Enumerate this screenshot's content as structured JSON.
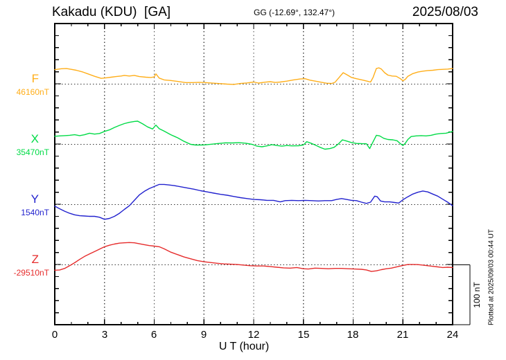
{
  "header": {
    "station": "Kakadu (KDU)  [GA]",
    "coords": "GG (-12.69°, 132.47°)",
    "date": "2025/08/03"
  },
  "xaxis": {
    "label": "U T (hour)",
    "tick_labels": [
      "0",
      "3",
      "6",
      "9",
      "12",
      "15",
      "18",
      "21",
      "24"
    ]
  },
  "scalebar": {
    "label": "100 nT",
    "nT": 100
  },
  "footer_note": "Plotted at 2025/09/03 00:44 UT",
  "chart_data": {
    "type": "line",
    "title": "Kakadu (KDU)  [GA]",
    "subtitle": "GG (-12.69°, 132.47°)",
    "date": "2025/08/03",
    "xlabel": "U T (hour)",
    "x_range": [
      0,
      24
    ],
    "x_tick_interval_hours": 1,
    "x_gridlines_hours": [
      3,
      6,
      9,
      12,
      15,
      18,
      21
    ],
    "y_tick_interval_nT": 20,
    "y_baseline_separation_nT": 100,
    "grid": "dotted",
    "series": [
      {
        "name": "F",
        "baseline_label": "46160nT",
        "baseline_nT": 46160,
        "color": "#FFAE19",
        "points": [
          [
            0,
            24
          ],
          [
            0.4,
            25.5
          ],
          [
            0.7,
            26
          ],
          [
            1.0,
            24.5
          ],
          [
            1.3,
            23
          ],
          [
            1.7,
            20
          ],
          [
            2.0,
            17
          ],
          [
            2.4,
            13
          ],
          [
            2.8,
            9.5
          ],
          [
            3.1,
            10.5
          ],
          [
            3.4,
            11.5
          ],
          [
            3.7,
            12.5
          ],
          [
            4.0,
            13.5
          ],
          [
            4.2,
            14.5
          ],
          [
            4.5,
            13.5
          ],
          [
            4.8,
            14.5
          ],
          [
            5.1,
            12.5
          ],
          [
            5.5,
            11.5
          ],
          [
            5.8,
            11
          ],
          [
            6.0,
            12
          ],
          [
            6.1,
            17
          ],
          [
            6.3,
            10
          ],
          [
            6.6,
            7
          ],
          [
            7.0,
            6
          ],
          [
            7.4,
            4.5
          ],
          [
            7.9,
            2.5
          ],
          [
            8.3,
            2.5
          ],
          [
            8.7,
            3
          ],
          [
            9.1,
            2.5
          ],
          [
            9.6,
            1.5
          ],
          [
            10.0,
            0.8
          ],
          [
            10.4,
            0
          ],
          [
            10.8,
            -0.5
          ],
          [
            11.2,
            1
          ],
          [
            11.6,
            2
          ],
          [
            12.0,
            3.5
          ],
          [
            12.3,
            1.7
          ],
          [
            12.6,
            3
          ],
          [
            13.0,
            4
          ],
          [
            13.3,
            2.8
          ],
          [
            13.6,
            3.5
          ],
          [
            14.0,
            5
          ],
          [
            14.4,
            7
          ],
          [
            14.8,
            8.5
          ],
          [
            15.1,
            9
          ],
          [
            15.4,
            6.5
          ],
          [
            15.8,
            4.5
          ],
          [
            16.1,
            3
          ],
          [
            16.4,
            1.5
          ],
          [
            16.7,
            1
          ],
          [
            16.9,
            3
          ],
          [
            17.15,
            11
          ],
          [
            17.4,
            19
          ],
          [
            17.6,
            16
          ],
          [
            17.9,
            11
          ],
          [
            18.2,
            9
          ],
          [
            18.6,
            6.5
          ],
          [
            18.9,
            4.5
          ],
          [
            19.05,
            3.5
          ],
          [
            19.2,
            11
          ],
          [
            19.4,
            26
          ],
          [
            19.55,
            27
          ],
          [
            19.7,
            25
          ],
          [
            19.9,
            19
          ],
          [
            20.1,
            15
          ],
          [
            20.35,
            13.5
          ],
          [
            20.6,
            13
          ],
          [
            20.85,
            9
          ],
          [
            21.0,
            5.5
          ],
          [
            21.15,
            8
          ],
          [
            21.3,
            13
          ],
          [
            21.6,
            17.5
          ],
          [
            21.9,
            20
          ],
          [
            22.2,
            21.5
          ],
          [
            22.5,
            22.5
          ],
          [
            22.8,
            23
          ],
          [
            23.1,
            24
          ],
          [
            23.4,
            24.5
          ],
          [
            23.7,
            25
          ],
          [
            24,
            26
          ]
        ]
      },
      {
        "name": "X",
        "baseline_label": "35470nT",
        "baseline_nT": 35470,
        "color": "#00DB46",
        "points": [
          [
            0,
            13.5
          ],
          [
            0.3,
            14
          ],
          [
            0.6,
            14.5
          ],
          [
            0.9,
            15
          ],
          [
            1.2,
            16
          ],
          [
            1.5,
            14.5
          ],
          [
            1.8,
            16
          ],
          [
            2.1,
            18.5
          ],
          [
            2.4,
            17
          ],
          [
            2.7,
            18
          ],
          [
            3.0,
            21.5
          ],
          [
            3.3,
            24
          ],
          [
            3.6,
            28
          ],
          [
            3.9,
            31.5
          ],
          [
            4.2,
            34.5
          ],
          [
            4.5,
            36.5
          ],
          [
            4.8,
            38
          ],
          [
            5.0,
            38.5
          ],
          [
            5.3,
            34
          ],
          [
            5.6,
            29
          ],
          [
            5.9,
            25.5
          ],
          [
            6.1,
            32
          ],
          [
            6.3,
            26
          ],
          [
            6.6,
            22
          ],
          [
            7.0,
            16
          ],
          [
            7.4,
            11
          ],
          [
            7.8,
            5
          ],
          [
            8.2,
            0
          ],
          [
            8.5,
            -1.2
          ],
          [
            9.0,
            -1
          ],
          [
            9.5,
            0.3
          ],
          [
            9.9,
            1.5
          ],
          [
            10.3,
            2.5
          ],
          [
            10.7,
            2.3
          ],
          [
            11.1,
            2.8
          ],
          [
            11.5,
            2
          ],
          [
            11.9,
            0
          ],
          [
            12.2,
            -3
          ],
          [
            12.5,
            -4
          ],
          [
            12.8,
            -2.5
          ],
          [
            13.1,
            -0.5
          ],
          [
            13.4,
            -2
          ],
          [
            13.7,
            -3
          ],
          [
            14.0,
            -2
          ],
          [
            14.3,
            -2.5
          ],
          [
            14.7,
            -2.3
          ],
          [
            15.0,
            -1
          ],
          [
            15.2,
            4.5
          ],
          [
            15.45,
            2
          ],
          [
            15.7,
            -1
          ],
          [
            16.0,
            -5
          ],
          [
            16.3,
            -8
          ],
          [
            16.6,
            -7
          ],
          [
            16.85,
            -5
          ],
          [
            17.1,
            0.5
          ],
          [
            17.35,
            7.5
          ],
          [
            17.6,
            5.5
          ],
          [
            17.9,
            3
          ],
          [
            18.2,
            1.5
          ],
          [
            18.5,
            1.2
          ],
          [
            18.8,
            1
          ],
          [
            19.0,
            -7
          ],
          [
            19.15,
            1.5
          ],
          [
            19.4,
            15
          ],
          [
            19.6,
            14
          ],
          [
            19.85,
            10
          ],
          [
            20.1,
            8
          ],
          [
            20.4,
            7.5
          ],
          [
            20.65,
            6
          ],
          [
            20.85,
            1
          ],
          [
            21.0,
            -2
          ],
          [
            21.15,
            2
          ],
          [
            21.3,
            8
          ],
          [
            21.5,
            13
          ],
          [
            21.8,
            14
          ],
          [
            22.1,
            14.5
          ],
          [
            22.4,
            14
          ],
          [
            22.7,
            15
          ],
          [
            23.0,
            17
          ],
          [
            23.3,
            18
          ],
          [
            23.6,
            18.5
          ],
          [
            24,
            21.5
          ]
        ]
      },
      {
        "name": "Y",
        "baseline_label": "1540nT",
        "baseline_nT": 1540,
        "color": "#2121CE",
        "points": [
          [
            0,
            -2.5
          ],
          [
            0.3,
            -7
          ],
          [
            0.6,
            -11
          ],
          [
            0.9,
            -14.5
          ],
          [
            1.2,
            -17
          ],
          [
            1.5,
            -18.5
          ],
          [
            1.8,
            -19
          ],
          [
            2.1,
            -19.5
          ],
          [
            2.4,
            -19.5
          ],
          [
            2.7,
            -21
          ],
          [
            3.0,
            -24.5
          ],
          [
            3.3,
            -23
          ],
          [
            3.6,
            -19.5
          ],
          [
            3.9,
            -14.5
          ],
          [
            4.2,
            -8
          ],
          [
            4.5,
            -2
          ],
          [
            4.8,
            7
          ],
          [
            5.1,
            16
          ],
          [
            5.4,
            22
          ],
          [
            5.7,
            26.5
          ],
          [
            6.0,
            30
          ],
          [
            6.3,
            33.5
          ],
          [
            6.6,
            33.5
          ],
          [
            6.9,
            32.5
          ],
          [
            7.2,
            31.5
          ],
          [
            7.6,
            29.5
          ],
          [
            8.0,
            27.5
          ],
          [
            8.4,
            25.5
          ],
          [
            8.8,
            23
          ],
          [
            9.2,
            21
          ],
          [
            9.6,
            19
          ],
          [
            10.0,
            17
          ],
          [
            10.4,
            15.5
          ],
          [
            10.8,
            13.5
          ],
          [
            11.2,
            11.5
          ],
          [
            11.6,
            10
          ],
          [
            12.0,
            8.5
          ],
          [
            12.4,
            8
          ],
          [
            12.8,
            7
          ],
          [
            13.2,
            7
          ],
          [
            13.6,
            4.5
          ],
          [
            13.9,
            6.5
          ],
          [
            14.3,
            7
          ],
          [
            14.7,
            6.5
          ],
          [
            15.1,
            7
          ],
          [
            15.5,
            6.5
          ],
          [
            15.9,
            6
          ],
          [
            16.3,
            6.5
          ],
          [
            16.7,
            6.5
          ],
          [
            17.0,
            8.5
          ],
          [
            17.3,
            10
          ],
          [
            17.6,
            8.5
          ],
          [
            17.9,
            7
          ],
          [
            18.2,
            6.5
          ],
          [
            18.5,
            4
          ],
          [
            18.8,
            2
          ],
          [
            19.05,
            4
          ],
          [
            19.3,
            14
          ],
          [
            19.45,
            13
          ],
          [
            19.65,
            6
          ],
          [
            19.9,
            4.5
          ],
          [
            20.2,
            4.5
          ],
          [
            20.5,
            3.5
          ],
          [
            20.75,
            2.5
          ],
          [
            21.0,
            8
          ],
          [
            21.3,
            13
          ],
          [
            21.6,
            17.5
          ],
          [
            21.9,
            20.5
          ],
          [
            22.2,
            22.5
          ],
          [
            22.5,
            21
          ],
          [
            22.8,
            17.5
          ],
          [
            23.1,
            14
          ],
          [
            23.4,
            9
          ],
          [
            23.7,
            4
          ],
          [
            24,
            -2
          ]
        ]
      },
      {
        "name": "Z",
        "baseline_label": "-29510nT",
        "baseline_nT": -29510,
        "color": "#E62B2B",
        "points": [
          [
            0,
            -9
          ],
          [
            0.3,
            -8.5
          ],
          [
            0.6,
            -6
          ],
          [
            0.9,
            -1.5
          ],
          [
            1.2,
            3.5
          ],
          [
            1.5,
            9
          ],
          [
            1.8,
            14
          ],
          [
            2.1,
            18
          ],
          [
            2.4,
            22
          ],
          [
            2.7,
            26
          ],
          [
            3.0,
            30
          ],
          [
            3.3,
            32.5
          ],
          [
            3.6,
            34.5
          ],
          [
            3.9,
            36
          ],
          [
            4.2,
            36.5
          ],
          [
            4.5,
            37
          ],
          [
            4.8,
            36.5
          ],
          [
            5.1,
            35
          ],
          [
            5.4,
            33.5
          ],
          [
            5.7,
            32
          ],
          [
            6.0,
            31
          ],
          [
            6.3,
            30
          ],
          [
            6.6,
            26.5
          ],
          [
            7.0,
            21
          ],
          [
            7.4,
            17
          ],
          [
            7.8,
            13
          ],
          [
            8.2,
            10
          ],
          [
            8.6,
            7
          ],
          [
            9.0,
            5
          ],
          [
            9.4,
            3.8
          ],
          [
            9.8,
            2.5
          ],
          [
            10.2,
            1.5
          ],
          [
            10.6,
            1
          ],
          [
            11.0,
            0.5
          ],
          [
            11.4,
            -0.5
          ],
          [
            11.8,
            -1.5
          ],
          [
            12.2,
            -2
          ],
          [
            12.6,
            -2
          ],
          [
            13.0,
            -3
          ],
          [
            13.4,
            -4
          ],
          [
            13.8,
            -5
          ],
          [
            14.2,
            -5.5
          ],
          [
            14.6,
            -4.5
          ],
          [
            15.0,
            -6.5
          ],
          [
            15.3,
            -7
          ],
          [
            15.7,
            -5.5
          ],
          [
            16.1,
            -6
          ],
          [
            16.5,
            -6.5
          ],
          [
            16.9,
            -6
          ],
          [
            17.3,
            -6
          ],
          [
            17.7,
            -6.5
          ],
          [
            18.1,
            -7
          ],
          [
            18.5,
            -7.5
          ],
          [
            18.8,
            -8.5
          ],
          [
            19.1,
            -11
          ],
          [
            19.4,
            -10
          ],
          [
            19.7,
            -8
          ],
          [
            20.0,
            -6.5
          ],
          [
            20.3,
            -5.5
          ],
          [
            20.7,
            -3
          ],
          [
            21.0,
            -1
          ],
          [
            21.3,
            0.5
          ],
          [
            21.6,
            0.5
          ],
          [
            21.9,
            0.3
          ],
          [
            22.2,
            -0.5
          ],
          [
            22.5,
            -1.5
          ],
          [
            22.8,
            -2.5
          ],
          [
            23.1,
            -3.5
          ],
          [
            23.4,
            -4.5
          ],
          [
            23.7,
            -4
          ],
          [
            24,
            -4.5
          ]
        ]
      }
    ]
  }
}
